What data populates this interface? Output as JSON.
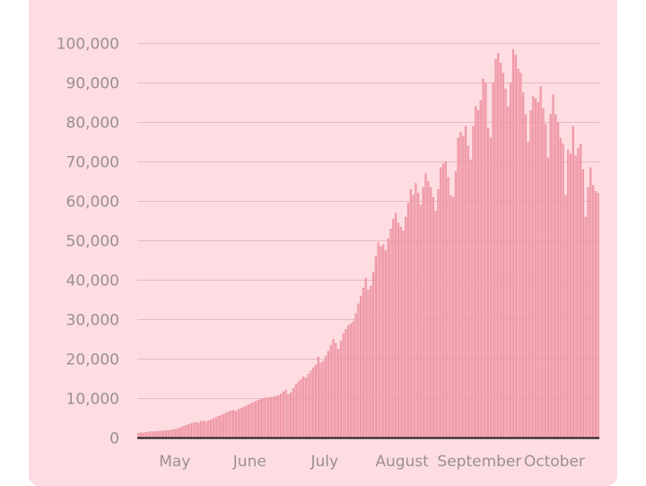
{
  "chart_data": {
    "type": "bar",
    "title": "",
    "xlabel": "",
    "ylabel": "",
    "ylim": [
      0,
      100000
    ],
    "y_ticks": [
      0,
      10000,
      20000,
      30000,
      40000,
      50000,
      60000,
      70000,
      80000,
      90000,
      100000
    ],
    "y_tick_labels": [
      "0",
      "10,000",
      "20,000",
      "30,000",
      "40,000",
      "50,000",
      "60,000",
      "70,000",
      "80,000",
      "90,000",
      "100,000"
    ],
    "x_tick_labels": [
      "May",
      "June",
      "July",
      "August",
      "September",
      "October"
    ],
    "x_tick_days": [
      15,
      45,
      75,
      106,
      137,
      167
    ],
    "grid": true,
    "bar_color": "#f6a7b4",
    "bar_edge_color": "#e9899a",
    "values": [
      1200,
      1300,
      1250,
      1400,
      1500,
      1600,
      1550,
      1700,
      1650,
      1800,
      1750,
      1900,
      1850,
      2000,
      2100,
      2200,
      2500,
      2700,
      3000,
      3200,
      3400,
      3600,
      3800,
      4000,
      3700,
      4200,
      4300,
      4100,
      4400,
      4600,
      4900,
      5200,
      5500,
      5800,
      6000,
      6300,
      6600,
      6900,
      7000,
      6800,
      7200,
      7500,
      7800,
      8100,
      8400,
      8700,
      9000,
      9300,
      9600,
      9800,
      10000,
      10200,
      10100,
      10300,
      10400,
      10600,
      10800,
      11200,
      11700,
      12100,
      11000,
      11500,
      12500,
      13500,
      14200,
      14800,
      15500,
      15200,
      16200,
      17000,
      17800,
      18500,
      20500,
      19000,
      19500,
      20800,
      22000,
      23500,
      25000,
      24000,
      22500,
      24500,
      26500,
      27500,
      28500,
      29000,
      29500,
      31500,
      34000,
      36000,
      38000,
      40500,
      37500,
      38500,
      42000,
      46000,
      49500,
      48500,
      49000,
      47500,
      50500,
      53000,
      55500,
      57000,
      54500,
      53500,
      52500,
      56000,
      59500,
      63000,
      61500,
      64500,
      62000,
      59000,
      63500,
      67000,
      65000,
      63500,
      61000,
      57500,
      63000,
      68500,
      69500,
      70000,
      66000,
      61500,
      61000,
      67500,
      76000,
      77500,
      76500,
      79000,
      74000,
      70500,
      79000,
      84000,
      83000,
      85500,
      91000,
      90000,
      78500,
      76000,
      90000,
      96000,
      97500,
      95000,
      92500,
      88500,
      84000,
      90000,
      98500,
      97000,
      93500,
      92500,
      87500,
      82000,
      75000,
      83000,
      86500,
      86000,
      85000,
      89000,
      83500,
      79500,
      71000,
      82000,
      87000,
      82000,
      80000,
      76000,
      74500,
      61500,
      73000,
      72000,
      79000,
      71500,
      73500,
      74500,
      68000,
      56000,
      63500,
      68500,
      64000,
      62500,
      62000
    ]
  }
}
